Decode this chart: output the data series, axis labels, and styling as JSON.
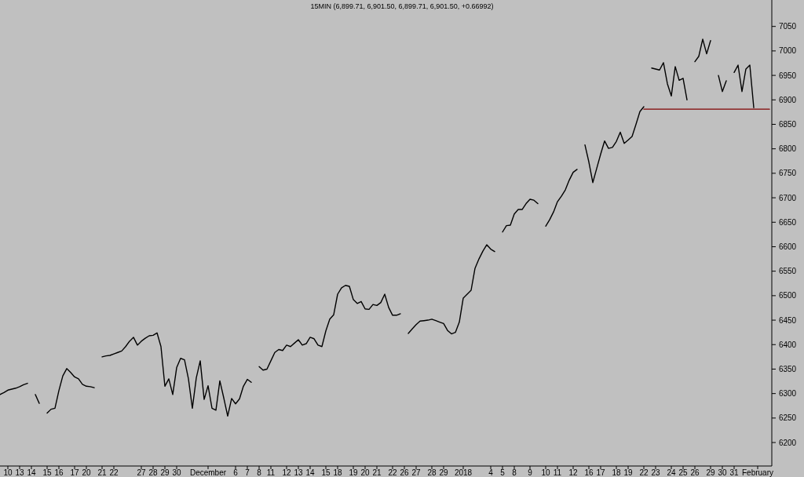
{
  "chart_data": {
    "type": "line",
    "title": "15MIN (6,899.71, 6,901.50, 6,899.71, 6,901.50, +0.66992)",
    "categories": [
      null,
      null,
      "10",
      null,
      null,
      "13",
      null,
      null,
      "14",
      null,
      null,
      null,
      "15",
      null,
      null,
      "16",
      null,
      null,
      null,
      "17",
      null,
      null,
      "20",
      null,
      null,
      null,
      "21",
      null,
      null,
      "22",
      null,
      null,
      null,
      null,
      null,
      null,
      "27",
      null,
      null,
      "28",
      null,
      null,
      "29",
      null,
      null,
      "30",
      null,
      null,
      null,
      null,
      null,
      null,
      null,
      "December",
      null,
      null,
      null,
      null,
      null,
      null,
      "6",
      null,
      null,
      "7",
      null,
      null,
      "8",
      null,
      null,
      "11",
      null,
      null,
      null,
      "12",
      null,
      null,
      "13",
      null,
      null,
      "14",
      null,
      null,
      null,
      "15",
      null,
      null,
      "18",
      null,
      null,
      null,
      "19",
      null,
      null,
      "20",
      null,
      null,
      "21",
      null,
      null,
      null,
      "22",
      null,
      null,
      "26",
      null,
      null,
      "27",
      null,
      null,
      null,
      "28",
      null,
      null,
      "29",
      null,
      null,
      null,
      null,
      "2018",
      null,
      null,
      null,
      null,
      null,
      null,
      "4",
      null,
      null,
      "5",
      null,
      null,
      "8",
      null,
      null,
      null,
      "9",
      null,
      null,
      null,
      "10",
      null,
      null,
      "11",
      null,
      null,
      null,
      "12",
      null,
      null,
      null,
      "16",
      null,
      null,
      "17",
      null,
      null,
      null,
      "18",
      null,
      null,
      "19",
      null,
      null,
      null,
      "22",
      null,
      null,
      "23",
      null,
      null,
      null,
      "24",
      null,
      null,
      "25",
      null,
      null,
      "26",
      null,
      null,
      null,
      "29",
      null,
      null,
      "30",
      null,
      null,
      "31",
      null,
      null,
      null,
      null,
      null,
      "February",
      null,
      null,
      null
    ],
    "series": [
      {
        "color": "#000000",
        "values": [
          6298,
          6302,
          6307,
          6309,
          6311,
          6314,
          6318,
          6321,
          null,
          6298,
          6280,
          null,
          6260,
          6268,
          6270,
          6306,
          6336,
          6351,
          6343,
          6334,
          6330,
          6319,
          6315,
          6314,
          6312,
          null,
          6375,
          6377,
          6378,
          6381,
          6384,
          6387,
          6396,
          6407,
          6415,
          6399,
          6407,
          6413,
          6418,
          6419,
          6424,
          6396,
          6315,
          6330,
          6298,
          6353,
          6372,
          6369,
          6330,
          6270,
          6332,
          6367,
          6288,
          6316,
          6270,
          6266,
          6326,
          6291,
          6254,
          6290,
          6279,
          6289,
          6315,
          6329,
          6323,
          null,
          6355,
          6348,
          6350,
          6367,
          6384,
          6390,
          6388,
          6399,
          6396,
          6403,
          6410,
          6399,
          6402,
          6415,
          6412,
          6399,
          6396,
          6428,
          6452,
          6461,
          6503,
          6516,
          6521,
          6519,
          6492,
          6484,
          6488,
          6473,
          6472,
          6482,
          6480,
          6486,
          6503,
          6476,
          6460,
          6460,
          6463,
          null,
          6423,
          6432,
          6441,
          6448,
          6449,
          6450,
          6452,
          6449,
          6446,
          6443,
          6429,
          6422,
          6425,
          6446,
          6495,
          6503,
          6511,
          6556,
          6575,
          6591,
          6604,
          6595,
          6590,
          null,
          6630,
          6643,
          6644,
          6667,
          6676,
          6676,
          6688,
          6697,
          6695,
          6688,
          null,
          6642,
          6655,
          6671,
          6692,
          6703,
          6716,
          6736,
          6752,
          6758,
          null,
          6808,
          6773,
          6731,
          6760,
          6789,
          6816,
          6801,
          6803,
          6815,
          6834,
          6811,
          6818,
          6825,
          6850,
          6876,
          6886,
          null,
          6965,
          6963,
          6961,
          6976,
          6933,
          6908,
          6968,
          6940,
          6944,
          6900,
          null,
          6978,
          6989,
          7024,
          6994,
          7021,
          null,
          6950,
          6917,
          6939,
          null,
          6956,
          6971,
          6917,
          6963,
          6971,
          6884,
          null,
          null,
          null,
          null
        ]
      },
      {
        "type": "line",
        "color": "#800000",
        "values": [
          null,
          null,
          null,
          null,
          null,
          null,
          null,
          null,
          null,
          null,
          null,
          null,
          null,
          null,
          null,
          null,
          null,
          null,
          null,
          null,
          null,
          null,
          null,
          null,
          null,
          null,
          null,
          null,
          null,
          null,
          null,
          null,
          null,
          null,
          null,
          null,
          null,
          null,
          null,
          null,
          null,
          null,
          null,
          null,
          null,
          null,
          null,
          null,
          null,
          null,
          null,
          null,
          null,
          null,
          null,
          null,
          null,
          null,
          null,
          null,
          null,
          null,
          null,
          null,
          null,
          null,
          null,
          null,
          null,
          null,
          null,
          null,
          null,
          null,
          null,
          null,
          null,
          null,
          null,
          null,
          null,
          null,
          null,
          null,
          null,
          null,
          null,
          null,
          null,
          null,
          null,
          null,
          null,
          null,
          null,
          null,
          null,
          null,
          null,
          null,
          null,
          null,
          null,
          null,
          null,
          null,
          null,
          null,
          null,
          null,
          null,
          null,
          null,
          null,
          null,
          null,
          null,
          null,
          null,
          null,
          null,
          null,
          null,
          null,
          null,
          null,
          null,
          null,
          null,
          null,
          null,
          null,
          null,
          null,
          null,
          null,
          null,
          null,
          null,
          null,
          null,
          null,
          null,
          null,
          null,
          null,
          null,
          null,
          null,
          null,
          null,
          null,
          null,
          null,
          null,
          null,
          null,
          null,
          null,
          null,
          null,
          null,
          null,
          null,
          6881,
          6881,
          6881,
          6881,
          6881,
          6881,
          6881,
          6881,
          6881,
          6881,
          6881,
          6881,
          6881,
          6881,
          6881,
          6881,
          6881,
          6881,
          6881,
          6881,
          6881,
          6881,
          6881,
          6881,
          6881,
          6881,
          6881,
          6881,
          6881,
          6881,
          6881,
          6881,
          6881
        ]
      }
    ],
    "ylim": [
      6152,
      7104
    ],
    "yticks": [
      6200,
      6250,
      6300,
      6350,
      6400,
      6450,
      6500,
      6550,
      6600,
      6650,
      6700,
      6750,
      6800,
      6850,
      6900,
      6950,
      7000,
      7050
    ]
  }
}
